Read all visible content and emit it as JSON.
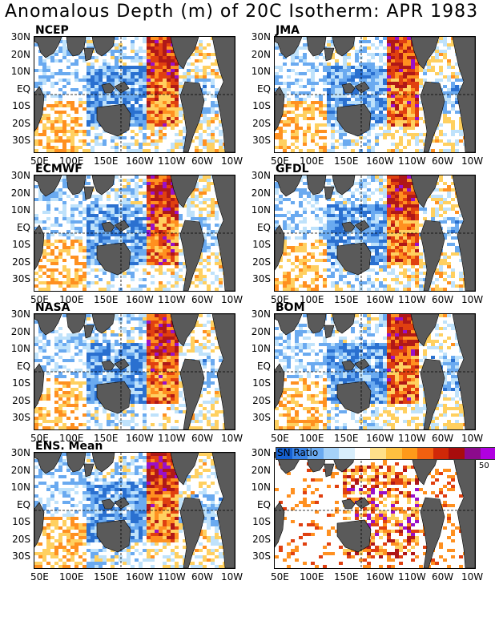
{
  "title": "Anomalous Depth (m) of 20C Isotherm: APR 1983",
  "y_labels": [
    "30N",
    "20N",
    "10N",
    "EQ",
    "10S",
    "20S",
    "30S"
  ],
  "x_labels": [
    "50E",
    "100E",
    "150E",
    "160W",
    "110W",
    "60W",
    "10W"
  ],
  "panels": [
    {
      "label": "NCEP"
    },
    {
      "label": "JMA"
    },
    {
      "label": "ECMWF"
    },
    {
      "label": "GFDL"
    },
    {
      "label": "NASA"
    },
    {
      "label": "BOM"
    },
    {
      "label": "ENS. Mean"
    },
    {
      "label": ""
    }
  ],
  "colorbar": {
    "label": "SN Ratio",
    "max_label": "50",
    "colors": [
      "#1560d0",
      "#3a84e6",
      "#6aaaf0",
      "#a6d2f8",
      "#d8eefc",
      "#ffffff",
      "#ffe08a",
      "#ffc040",
      "#ff9a1a",
      "#f06010",
      "#d02808",
      "#a80c0c",
      "#8c0a8c",
      "#b000e0"
    ]
  },
  "palette": {
    "land": "#5a5a5a",
    "neg_strong": "#2a70d0",
    "neg": "#6aaaf0",
    "neg_weak": "#bfe2fb",
    "pos_weak": "#ffd060",
    "pos": "#ff9020",
    "pos_strong": "#e04010",
    "pos_max": "#b01818",
    "extreme": "#9a10c8"
  }
}
